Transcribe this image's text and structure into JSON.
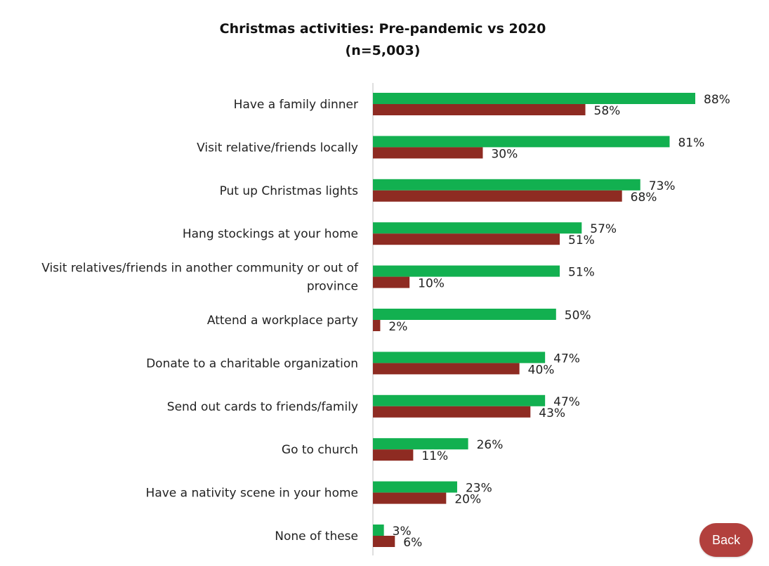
{
  "chart_data": {
    "type": "bar",
    "orientation": "horizontal",
    "title": "Christmas activities: Pre-pandemic vs 2020",
    "subtitle": "(n=5,003)",
    "categories": [
      [
        "Have a family dinner"
      ],
      [
        "Visit relative/friends locally"
      ],
      [
        "Put up Christmas lights"
      ],
      [
        "Hang stockings at your home"
      ],
      [
        "Visit relatives/friends in another community or out of",
        "province"
      ],
      [
        "Attend a workplace party"
      ],
      [
        "Donate to a charitable organization"
      ],
      [
        "Send out cards to friends/family"
      ],
      [
        "Go to church"
      ],
      [
        "Have a nativity scene in your home"
      ],
      [
        "None of these"
      ]
    ],
    "series": [
      {
        "color": "#12b050",
        "values": [
          88,
          81,
          73,
          57,
          51,
          50,
          47,
          47,
          26,
          23,
          3
        ],
        "labels": [
          "88%",
          "81%",
          "73%",
          "57%",
          "51%",
          "50%",
          "47%",
          "47%",
          "26%",
          "23%",
          "3%"
        ]
      },
      {
        "color": "#8e2b22",
        "values": [
          58,
          30,
          68,
          51,
          10,
          2,
          40,
          43,
          11,
          20,
          6
        ],
        "labels": [
          "58%",
          "30%",
          "68%",
          "51%",
          "10%",
          "2%",
          "40%",
          "43%",
          "11%",
          "20%",
          "6%"
        ]
      }
    ],
    "unit": "%",
    "xlim": [
      0,
      100
    ],
    "grid": false,
    "legend": "none"
  },
  "back_button": {
    "label": "Back"
  }
}
